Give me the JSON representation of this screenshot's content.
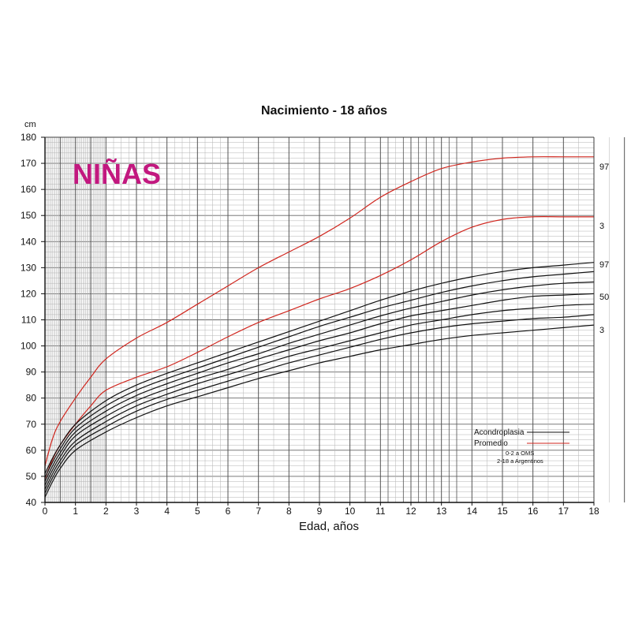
{
  "chart_data": {
    "type": "line",
    "title": "Nacimiento - 18 años",
    "label_big": "NIÑAS",
    "xlabel": "Edad, años",
    "yunit": "cm",
    "xlim": [
      0,
      18
    ],
    "ylim": [
      40,
      180
    ],
    "x_ticks": [
      0,
      1,
      2,
      3,
      4,
      5,
      6,
      7,
      8,
      9,
      10,
      11,
      12,
      13,
      14,
      15,
      16,
      17,
      18
    ],
    "y_ticks": [
      40,
      50,
      60,
      70,
      80,
      90,
      100,
      110,
      120,
      130,
      140,
      150,
      160,
      170,
      180
    ],
    "grid": true,
    "colors": {
      "acondroplasia": "#111111",
      "promedio": "#d0261e",
      "label_big": "#c2187f"
    },
    "legend": {
      "position": "bottom-right",
      "items": [
        {
          "label": "Acondroplasia",
          "color": "#111111"
        },
        {
          "label": "Promedio",
          "color": "#d0261e"
        }
      ],
      "notes": [
        "0-2 a OMS",
        "2-18 a Argentinos"
      ]
    },
    "percentile_labels": [
      {
        "text": "97",
        "series": "Promedio P97"
      },
      {
        "text": "3",
        "series": "Promedio P3"
      },
      {
        "text": "97",
        "series": "Acondroplasia P97"
      },
      {
        "text": "50",
        "series": "Acondroplasia P50"
      },
      {
        "text": "3",
        "series": "Acondroplasia P3"
      }
    ],
    "series": [
      {
        "group": "Promedio",
        "x": [
          0,
          0.25,
          0.5,
          1,
          1.5,
          2,
          3,
          4,
          5,
          6,
          7,
          8,
          9,
          10,
          11,
          12,
          13,
          14,
          15,
          16,
          17,
          18
        ],
        "values": [
          54,
          64.5,
          71,
          80,
          88,
          95,
          103,
          109,
          116,
          123,
          130,
          136,
          142,
          149,
          157,
          163,
          168,
          170.5,
          172,
          172.5,
          172.5,
          172.5
        ]
      },
      {
        "group": "Promedio",
        "x": [
          0,
          0.25,
          0.5,
          1,
          1.5,
          2,
          3,
          4,
          5,
          6,
          7,
          8,
          9,
          10,
          11,
          12,
          13,
          14,
          15,
          16,
          17,
          18
        ],
        "values": [
          49,
          56.5,
          62,
          70,
          77,
          83,
          88,
          92,
          97.5,
          103.5,
          109,
          113.5,
          118,
          122,
          127,
          133,
          140,
          145.5,
          148.5,
          149.5,
          149.5,
          149.5
        ]
      },
      {
        "group": "Acondroplasia",
        "x": [
          0,
          0.25,
          0.5,
          1,
          2,
          3,
          4,
          5,
          6,
          7,
          8,
          9,
          10,
          11,
          12,
          13,
          14,
          15,
          16,
          17,
          18
        ],
        "values": [
          51,
          57,
          62,
          70,
          79,
          85,
          89.5,
          93.5,
          97.5,
          101.5,
          105.5,
          109.5,
          113.5,
          117.5,
          121,
          124,
          126.5,
          128.5,
          130,
          131,
          132
        ]
      },
      {
        "group": "Acondroplasia",
        "x": [
          0,
          0.25,
          0.5,
          1,
          2,
          3,
          4,
          5,
          6,
          7,
          8,
          9,
          10,
          11,
          12,
          13,
          14,
          15,
          16,
          17,
          18
        ],
        "values": [
          49.5,
          55.5,
          60.5,
          68.5,
          77,
          83,
          87.5,
          91.5,
          95.5,
          99.5,
          103.5,
          107.5,
          111,
          114.5,
          117.5,
          120.5,
          123,
          125,
          126.5,
          127.5,
          128.5
        ]
      },
      {
        "group": "Acondroplasia",
        "x": [
          0,
          0.25,
          0.5,
          1,
          2,
          3,
          4,
          5,
          6,
          7,
          8,
          9,
          10,
          11,
          12,
          13,
          14,
          15,
          16,
          17,
          18
        ],
        "values": [
          48,
          54,
          59,
          67,
          75,
          81,
          85.5,
          89.5,
          93.5,
          97,
          101,
          104.5,
          108,
          111.5,
          114.5,
          117,
          119.5,
          121.5,
          123,
          124,
          124.5
        ]
      },
      {
        "group": "Acondroplasia",
        "x": [
          0,
          0.25,
          0.5,
          1,
          2,
          3,
          4,
          5,
          6,
          7,
          8,
          9,
          10,
          11,
          12,
          13,
          14,
          15,
          16,
          17,
          18
        ],
        "values": [
          46.5,
          52.5,
          57.5,
          65.5,
          73,
          79,
          83.5,
          87.5,
          91,
          95,
          98.5,
          102,
          105,
          108.5,
          111.5,
          113.5,
          115.5,
          117.5,
          119,
          119.5,
          120
        ]
      },
      {
        "group": "Acondroplasia",
        "x": [
          0,
          0.25,
          0.5,
          1,
          2,
          3,
          4,
          5,
          6,
          7,
          8,
          9,
          10,
          11,
          12,
          13,
          14,
          15,
          16,
          17,
          18
        ],
        "values": [
          45,
          51,
          56,
          63.5,
          71,
          77,
          81.5,
          85.5,
          89,
          92.5,
          96,
          99,
          102,
          105,
          108,
          110,
          112,
          113.5,
          114.5,
          115.5,
          116
        ]
      },
      {
        "group": "Acondroplasia",
        "x": [
          0,
          0.25,
          0.5,
          1,
          2,
          3,
          4,
          5,
          6,
          7,
          8,
          9,
          10,
          11,
          12,
          13,
          14,
          15,
          16,
          17,
          18
        ],
        "values": [
          43.5,
          49.5,
          54.5,
          62,
          69,
          75,
          79.5,
          83,
          86.5,
          90,
          93.5,
          96.5,
          99.5,
          102.5,
          105,
          107,
          108.5,
          109.5,
          110.5,
          111,
          112
        ]
      },
      {
        "group": "Acondroplasia",
        "x": [
          0,
          0.25,
          0.5,
          1,
          2,
          3,
          4,
          5,
          6,
          7,
          8,
          9,
          10,
          11,
          12,
          13,
          14,
          15,
          16,
          17,
          18
        ],
        "values": [
          42,
          48,
          53,
          60,
          67,
          72.5,
          77,
          80.5,
          84,
          87.5,
          90.5,
          93.5,
          96,
          98.5,
          100.5,
          102.5,
          104,
          105,
          106,
          107,
          108
        ]
      }
    ]
  }
}
